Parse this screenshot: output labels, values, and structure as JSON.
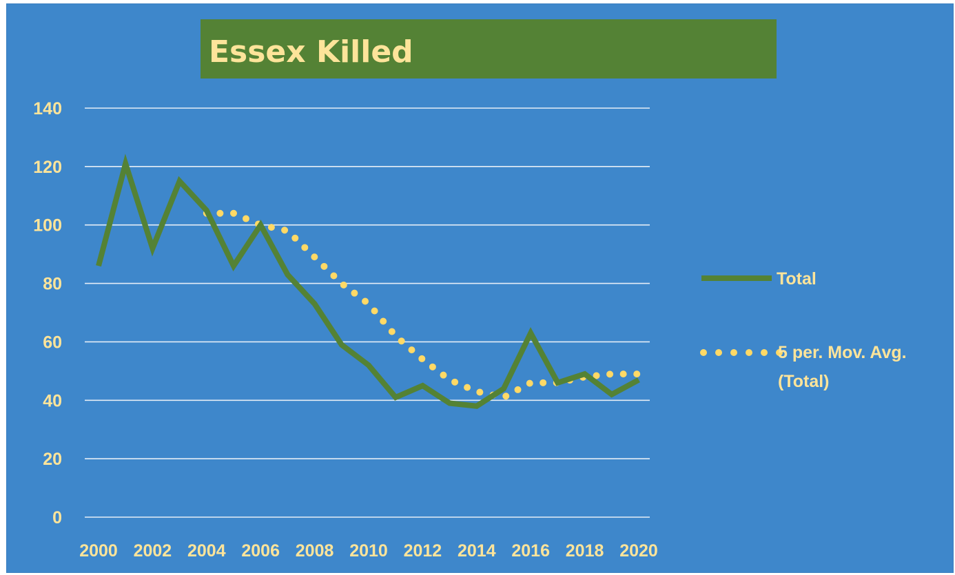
{
  "chart_data": {
    "type": "line",
    "title": "Essex Killed",
    "xlabel": "",
    "ylabel": "",
    "ylim": [
      0,
      140
    ],
    "y_ticks": [
      0,
      20,
      40,
      60,
      80,
      100,
      120,
      140
    ],
    "x_tick_labels": [
      "2000",
      "2002",
      "2004",
      "2006",
      "2008",
      "2010",
      "2012",
      "2014",
      "2016",
      "2018",
      "2020"
    ],
    "x": [
      2000,
      2001,
      2002,
      2003,
      2004,
      2005,
      2006,
      2007,
      2008,
      2009,
      2010,
      2011,
      2012,
      2013,
      2014,
      2015,
      2016,
      2017,
      2018,
      2019,
      2020
    ],
    "grid": true,
    "legend_position": "right",
    "series": [
      {
        "name": "Total",
        "style": "solid",
        "color": "#548235",
        "values": [
          86,
          121,
          92,
          115,
          105,
          86,
          100,
          83,
          73,
          59,
          52,
          41,
          45,
          39,
          38,
          44,
          63,
          46,
          49,
          42,
          47
        ]
      },
      {
        "name": "5 per. Mov. Avg.",
        "name_line2": "(Total)",
        "style": "dotted",
        "color": "#ffd966",
        "values": [
          null,
          null,
          null,
          null,
          104,
          104,
          100,
          98,
          89,
          80,
          73,
          62,
          54,
          47,
          43,
          41,
          46,
          46,
          48,
          49,
          49
        ]
      }
    ],
    "colors": {
      "background": "#3e87cb",
      "gridline": "#e6eef7",
      "text": "#fde49a",
      "title_box": "#548235"
    }
  }
}
